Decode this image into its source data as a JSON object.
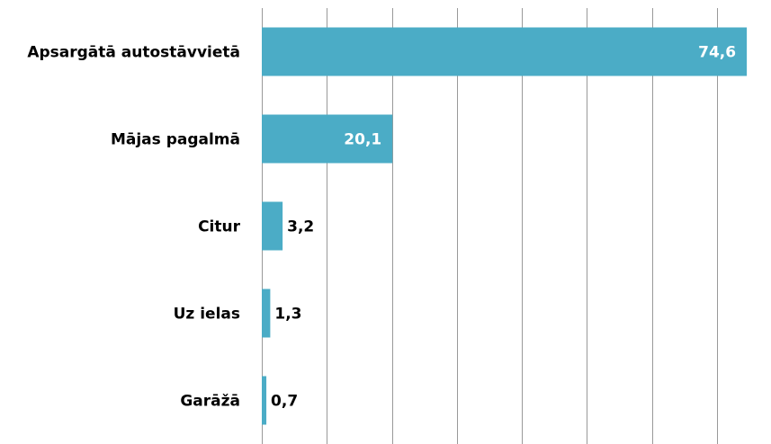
{
  "chart_data": {
    "type": "bar",
    "orientation": "horizontal",
    "categories": [
      "Apsargātā autostāvvietā",
      "Mājas pagalmā",
      "Citur",
      "Uz ielas",
      "Garāžā"
    ],
    "values": [
      74.6,
      20.1,
      3.2,
      1.3,
      0.7
    ],
    "value_labels": [
      "74,6",
      "20,1",
      "3,2",
      "1,3",
      "0,7"
    ],
    "color": "#4bacc6",
    "xlim": [
      0,
      75
    ],
    "xticks": [
      0,
      10,
      20,
      30,
      40,
      50,
      60,
      70
    ],
    "grid": true
  }
}
